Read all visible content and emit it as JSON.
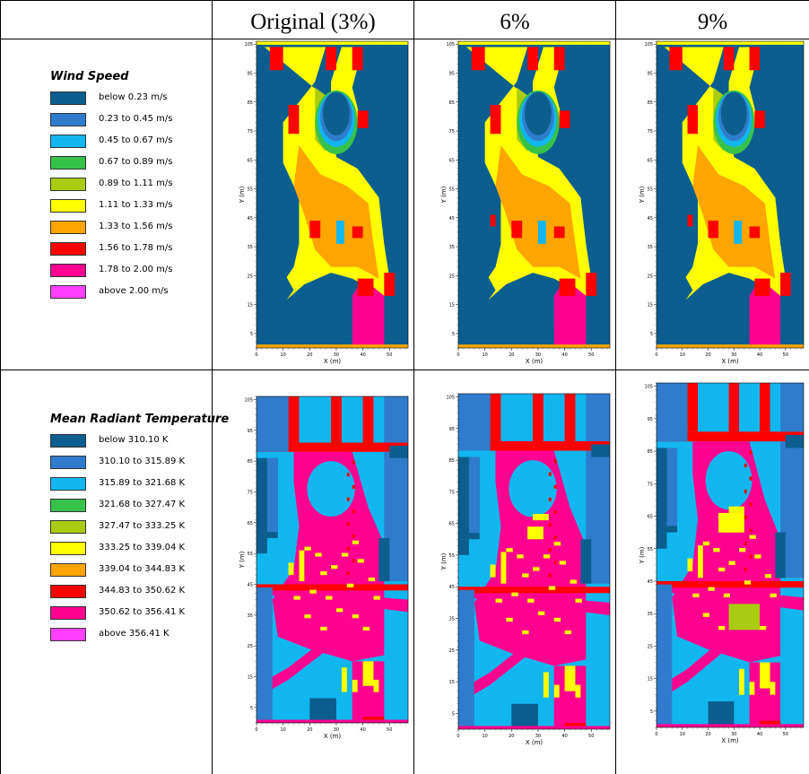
{
  "headers": [
    "Original (3%)",
    "6%",
    "9%"
  ],
  "wind_legend": {
    "title": "Wind Speed",
    "items": [
      {
        "label": "below 0.23 m/s",
        "color": "#0b5e8e"
      },
      {
        "label": "0.23 to 0.45 m/s",
        "color": "#2f7ccc"
      },
      {
        "label": "0.45 to 0.67 m/s",
        "color": "#12b6ef"
      },
      {
        "label": "0.67 to 0.89 m/s",
        "color": "#36c24a"
      },
      {
        "label": "0.89 to 1.11 m/s",
        "color": "#a9cc12"
      },
      {
        "label": "1.11 to 1.33 m/s",
        "color": "#ffff00"
      },
      {
        "label": "1.33 to 1.56 m/s",
        "color": "#ffa500"
      },
      {
        "label": "1.56 to 1.78 m/s",
        "color": "#ff0000"
      },
      {
        "label": "1.78 to 2.00 m/s",
        "color": "#ff0090"
      },
      {
        "label": "above 2.00 m/s",
        "color": "#ff40ff"
      }
    ]
  },
  "mrt_legend": {
    "title": "Mean Radiant Temperature",
    "items": [
      {
        "label": "below 310.10 K",
        "color": "#0b5e8e"
      },
      {
        "label": "310.10 to 315.89 K",
        "color": "#2f7ccc"
      },
      {
        "label": "315.89 to 321.68 K",
        "color": "#12b6ef"
      },
      {
        "label": "321.68 to 327.47 K",
        "color": "#36c24a"
      },
      {
        "label": "327.47 to 333.25 K",
        "color": "#a9cc12"
      },
      {
        "label": "333.25 to 339.04 K",
        "color": "#ffff00"
      },
      {
        "label": "339.04 to 344.83 K",
        "color": "#ffa500"
      },
      {
        "label": "344.83 to 350.62 K",
        "color": "#ff0000"
      },
      {
        "label": "350.62 to 356.41 K",
        "color": "#ff0090"
      },
      {
        "label": "above 356.41 K",
        "color": "#ff40ff"
      }
    ]
  },
  "axes": {
    "xlabel": "X (m)",
    "ylabel": "Y (m)",
    "xticks": [
      "0",
      "10",
      "20",
      "30",
      "40",
      "50"
    ],
    "yticks": [
      "5",
      "15",
      "25",
      "35",
      "45",
      "55",
      "65",
      "75",
      "85",
      "95",
      "105"
    ]
  }
}
